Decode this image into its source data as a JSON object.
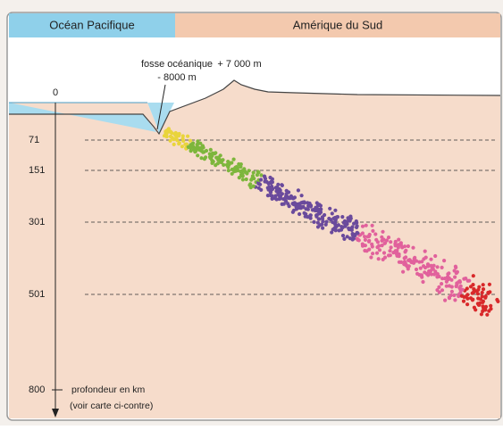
{
  "header": {
    "left": "Océan Pacifique",
    "right": "Amérique du Sud"
  },
  "annotations": {
    "trench": "fosse océanique",
    "trench_depth": "- 8000 m",
    "summit": "+ 7 000 m"
  },
  "axis": {
    "zero": 0,
    "depths": [
      71,
      151,
      301,
      501,
      800
    ],
    "label": "profondeur en km",
    "note": "(voir carte ci-contre)"
  }
}
